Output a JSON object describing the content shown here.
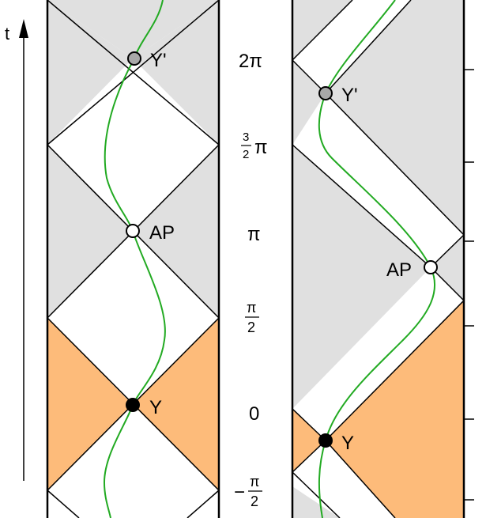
{
  "colors": {
    "background": "#ffffff",
    "grey_region": "#e0e0e0",
    "orange_region": "#fdbb7a",
    "worldline": "#22aa22",
    "line": "#000000",
    "grey_marker": "#a8a8a8",
    "filled_marker": "#000000",
    "open_marker": "#ffffff"
  },
  "time_axis": {
    "label": "t"
  },
  "tick_labels": {
    "two_pi": "2π",
    "three_half_pi_num": "3",
    "three_half_pi_den": "2",
    "three_half_pi_sym": "π",
    "pi": "π",
    "half_pi_num": "π",
    "half_pi_den": "2",
    "zero": "0",
    "neg_half_minus": "−",
    "neg_half_num": "π",
    "neg_half_den": "2"
  },
  "left_panel": {
    "markers": [
      {
        "label": "Y'",
        "kind": "grey",
        "t": "2π"
      },
      {
        "label": "AP",
        "kind": "open",
        "t": "π"
      },
      {
        "label": "Y",
        "kind": "filled",
        "t": "0"
      }
    ]
  },
  "right_panel": {
    "markers": [
      {
        "label": "Y'",
        "kind": "grey"
      },
      {
        "label": "AP",
        "kind": "open"
      },
      {
        "label": "Y",
        "kind": "filled"
      }
    ]
  }
}
